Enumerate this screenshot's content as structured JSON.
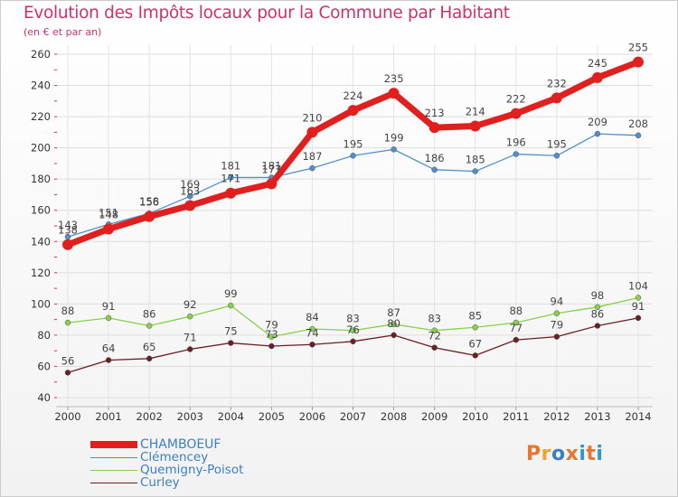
{
  "title": "Evolution des Impôts locaux pour la Commune par Habitant",
  "subtitle": "(en € et par an)",
  "logo": {
    "text": "Proxiti",
    "colors": [
      "#e8752a",
      "#f0a22a",
      "#3a7fc4",
      "#e8752a",
      "#2a9ad6",
      "#e8752a",
      "#2a9ad6"
    ]
  },
  "chart_data": {
    "type": "line",
    "title": "Evolution des Impôts locaux pour la Commune par Habitant",
    "subtitle": "(en € et par an)",
    "xlabel": "",
    "ylabel": "",
    "ylim": [
      40,
      260
    ],
    "yticks": [
      40,
      60,
      80,
      100,
      120,
      140,
      160,
      180,
      200,
      220,
      240,
      260
    ],
    "grid": true,
    "legend_position": "bottom-left",
    "x": [
      "2000",
      "2001",
      "2002",
      "2003",
      "2004",
      "2005",
      "2006",
      "2007",
      "2008",
      "2009",
      "2010",
      "2011",
      "2012",
      "2013",
      "2014"
    ],
    "series": [
      {
        "name": "CHAMBOEUF",
        "color": "#e0201e",
        "values": [
          138,
          148,
          156,
          163,
          171,
          177,
          210,
          224,
          235,
          213,
          214,
          222,
          232,
          245,
          255
        ],
        "labels": [
          "138",
          "148",
          "156",
          "163",
          "171",
          "177",
          "210",
          "224",
          "235",
          "213",
          "214",
          "222",
          "232",
          "245",
          "255"
        ]
      },
      {
        "name": "Clémencey",
        "color": "#4f90cc",
        "values": [
          143,
          151,
          158,
          169,
          181,
          181,
          187,
          195,
          199,
          186,
          185,
          196,
          195,
          209,
          208
        ],
        "labels": [
          "143",
          "151",
          "158",
          "169",
          "181",
          "181",
          "187",
          "195",
          "199",
          "186",
          "185",
          "196",
          "195",
          "209",
          "208"
        ]
      },
      {
        "name": "Quemigny-Poisot",
        "color": "#86d04a",
        "values": [
          88,
          91,
          86,
          92,
          99,
          79,
          84,
          83,
          87,
          83,
          85,
          88,
          94,
          98,
          104
        ],
        "labels": [
          "88",
          "91",
          "86",
          "92",
          "99",
          "79",
          "84",
          "83",
          "87",
          "83",
          "85",
          "88",
          "94",
          "98",
          "104"
        ]
      },
      {
        "name": "Curley",
        "color": "#6a1f24",
        "values": [
          56,
          64,
          65,
          71,
          75,
          73,
          74,
          76,
          80,
          72,
          67,
          77,
          79,
          86,
          91
        ],
        "labels": [
          "56",
          "64",
          "65",
          "71",
          "75",
          "73",
          "74",
          "76",
          "80",
          "72",
          "67",
          "77",
          "79",
          "86",
          "91"
        ]
      }
    ]
  }
}
